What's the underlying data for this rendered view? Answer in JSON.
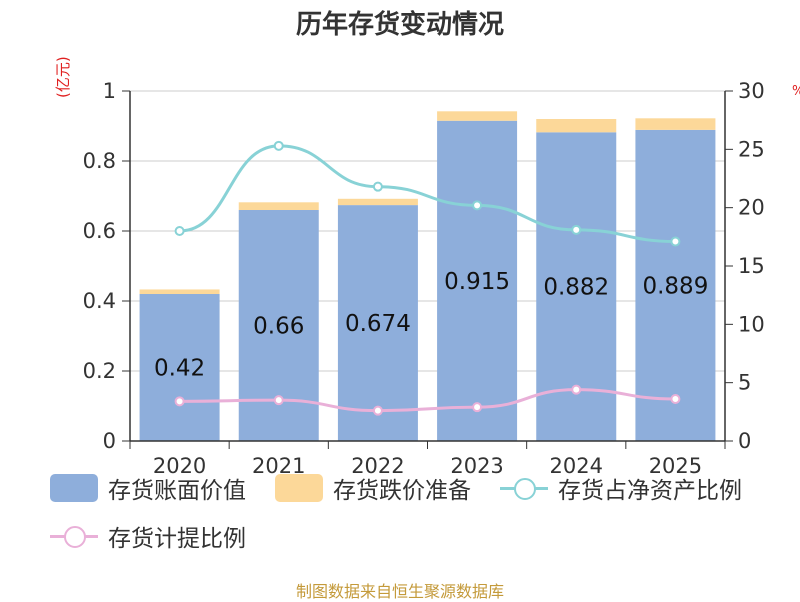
{
  "title": "历年存货变动情况",
  "source": "制图数据来自恒生聚源数据库",
  "chart_data": {
    "type": "bar",
    "categories": [
      "2020",
      "2021",
      "2022",
      "2023",
      "2024",
      "2025"
    ],
    "left_axis": {
      "unit": "(亿元)",
      "ylim": [
        0,
        1
      ],
      "ticks": [
        "0",
        "0.2",
        "0.4",
        "0.6",
        "0.8",
        "1"
      ]
    },
    "right_axis": {
      "unit": "%",
      "ylim": [
        0,
        30
      ],
      "ticks": [
        "0",
        "5",
        "10",
        "15",
        "20",
        "25",
        "30"
      ]
    },
    "series": [
      {
        "name": "存货账面价值",
        "type": "bar",
        "stack": "inventory",
        "axis": "left",
        "color": "#8eaedb",
        "values": [
          0.42,
          0.66,
          0.674,
          0.915,
          0.882,
          0.889
        ],
        "labels": [
          "0.42",
          "0.66",
          "0.674",
          "0.915",
          "0.882",
          "0.889"
        ]
      },
      {
        "name": "存货跌价准备",
        "type": "bar",
        "stack": "inventory",
        "axis": "left",
        "color": "#fcd899",
        "values": [
          0.013,
          0.022,
          0.018,
          0.027,
          0.038,
          0.033
        ]
      },
      {
        "name": "存货占净资产比例",
        "type": "line",
        "axis": "right",
        "color": "#88d2d6",
        "values": [
          18.0,
          25.3,
          21.8,
          20.2,
          18.1,
          17.1
        ]
      },
      {
        "name": "存货计提比例",
        "type": "line",
        "axis": "right",
        "color": "#e9b0d8",
        "values": [
          3.4,
          3.5,
          2.6,
          2.9,
          4.4,
          3.6
        ]
      }
    ],
    "grid": true,
    "legend_position": "bottom"
  }
}
